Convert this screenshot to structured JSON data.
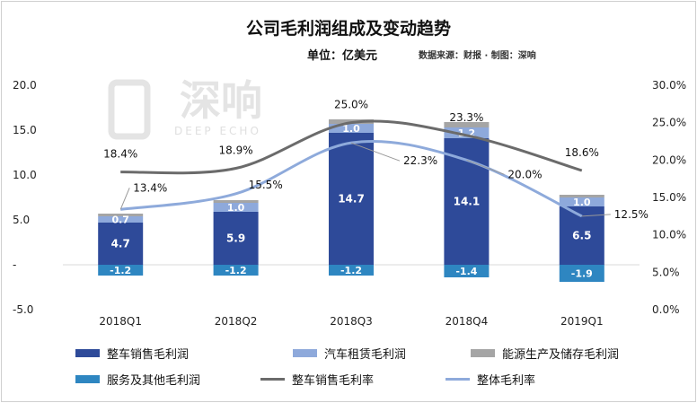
{
  "title": "公司毛利润组成及变动趋势",
  "unit": "单位：亿美元",
  "source": "数据来源：财报 · 制图：深响",
  "watermark": {
    "main": "深响",
    "sub": "DEEP ECHO"
  },
  "colors": {
    "vehicle_sales": "#2e4a99",
    "leasing": "#8ea9db",
    "energy": "#a5a5a5",
    "services": "#2e86c1",
    "vehicle_margin": "#6b6b6b",
    "total_margin": "#8eaadb"
  },
  "chart_data": {
    "type": "bar",
    "stacked": true,
    "categories": [
      "2018Q1",
      "2018Q2",
      "2018Q3",
      "2018Q4",
      "2019Q1"
    ],
    "series": [
      {
        "name": "整车销售毛利润",
        "kind": "bar",
        "values": [
          4.7,
          5.9,
          14.7,
          14.1,
          6.5
        ]
      },
      {
        "name": "汽车租赁毛利润",
        "kind": "bar",
        "values": [
          0.7,
          1.0,
          1.0,
          1.2,
          1.0
        ]
      },
      {
        "name": "能源生产及储存毛利润",
        "kind": "bar",
        "values": [
          0.3,
          0.3,
          0.5,
          0.6,
          0.3
        ]
      },
      {
        "name": "服务及其他毛利润",
        "kind": "bar",
        "values": [
          -1.2,
          -1.2,
          -1.2,
          -1.4,
          -1.9
        ]
      },
      {
        "name": "整车销售毛利率",
        "kind": "line",
        "axis": "right",
        "values": [
          18.4,
          18.9,
          25.0,
          23.3,
          18.6
        ],
        "labels": [
          "18.4%",
          "18.9%",
          "25.0%",
          "23.3%",
          "18.6%"
        ]
      },
      {
        "name": "整体毛利率",
        "kind": "line",
        "axis": "right",
        "values": [
          13.4,
          15.5,
          22.3,
          20.0,
          12.5
        ],
        "labels": [
          "13.4%",
          "15.5%",
          "22.3%",
          "20.0%",
          "12.5%"
        ]
      }
    ],
    "bar_labels": {
      "vehicle_sales": [
        "4.7",
        "5.9",
        "14.7",
        "14.1",
        "6.5"
      ],
      "leasing": [
        "0.7",
        "1.0",
        "1.0",
        "1.2",
        "1.0"
      ],
      "services": [
        "-1.2",
        "-1.2",
        "-1.2",
        "-1.4",
        "-1.9"
      ]
    },
    "left_axis": {
      "ylim": [
        -5,
        20
      ],
      "ticks": [
        20,
        15,
        10,
        5,
        0,
        -5
      ],
      "tick_labels": [
        "20.0",
        "15.0",
        "10.0",
        "5.0",
        "-",
        "-5.0"
      ]
    },
    "right_axis": {
      "ylim": [
        0,
        30
      ],
      "ticks": [
        30,
        25,
        20,
        15,
        10,
        5,
        0
      ],
      "tick_labels": [
        "30.0%",
        "25.0%",
        "20.0%",
        "15.0%",
        "10.0%",
        "5.0%",
        "0.0%"
      ]
    },
    "legend": {
      "position": "bottom",
      "items": [
        "整车销售毛利润",
        "汽车租赁毛利润",
        "能源生产及储存毛利润",
        "服务及其他毛利润",
        "整车销售毛利率",
        "整体毛利率"
      ]
    }
  }
}
